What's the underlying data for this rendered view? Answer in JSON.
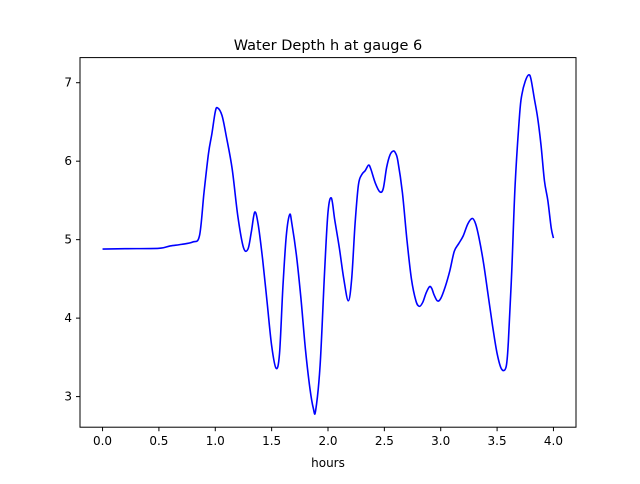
{
  "chart_data": {
    "type": "line",
    "title": "Water Depth h at gauge 6",
    "xlabel": "hours",
    "ylabel": "",
    "xlim": [
      -0.2,
      4.2
    ],
    "ylim": [
      2.61,
      7.32
    ],
    "x_ticks": [
      0.0,
      0.5,
      1.0,
      1.5,
      2.0,
      2.5,
      3.0,
      3.5,
      4.0
    ],
    "x_tick_labels": [
      "0.0",
      "0.5",
      "1.0",
      "1.5",
      "2.0",
      "2.5",
      "3.0",
      "3.5",
      "4.0"
    ],
    "y_ticks": [
      3,
      4,
      5,
      6,
      7
    ],
    "y_tick_labels": [
      "3",
      "4",
      "5",
      "6",
      "7"
    ],
    "grid": false,
    "series": [
      {
        "color": "#0000ff",
        "x": [
          0.0,
          0.2,
          0.5,
          0.6,
          0.7,
          0.8,
          0.86,
          0.9,
          0.94,
          0.97,
          1.0,
          1.02,
          1.06,
          1.1,
          1.15,
          1.2,
          1.25,
          1.29,
          1.32,
          1.35,
          1.38,
          1.42,
          1.46,
          1.5,
          1.54,
          1.57,
          1.6,
          1.63,
          1.66,
          1.68,
          1.72,
          1.76,
          1.8,
          1.84,
          1.87,
          1.89,
          1.93,
          1.97,
          2.0,
          2.03,
          2.06,
          2.1,
          2.14,
          2.18,
          2.21,
          2.24,
          2.27,
          2.3,
          2.33,
          2.36,
          2.38,
          2.42,
          2.46,
          2.49,
          2.52,
          2.55,
          2.58,
          2.6,
          2.62,
          2.66,
          2.7,
          2.74,
          2.78,
          2.81,
          2.84,
          2.87,
          2.9,
          2.92,
          2.94,
          2.97,
          3.0,
          3.04,
          3.08,
          3.12,
          3.16,
          3.2,
          3.24,
          3.28,
          3.31,
          3.34,
          3.38,
          3.42,
          3.46,
          3.5,
          3.54,
          3.58,
          3.6,
          3.63,
          3.66,
          3.7,
          3.72,
          3.75,
          3.78,
          3.8,
          3.83,
          3.86,
          3.89,
          3.92,
          3.95,
          3.98,
          4.0
        ],
        "y": [
          4.88,
          4.885,
          4.89,
          4.92,
          4.94,
          4.97,
          5.05,
          5.6,
          6.1,
          6.35,
          6.63,
          6.68,
          6.58,
          6.3,
          5.9,
          5.3,
          4.9,
          4.88,
          5.1,
          5.35,
          5.2,
          4.75,
          4.2,
          3.65,
          3.36,
          3.55,
          4.4,
          5.05,
          5.32,
          5.2,
          4.8,
          4.25,
          3.6,
          3.1,
          2.85,
          2.82,
          3.4,
          4.6,
          5.35,
          5.53,
          5.25,
          4.9,
          4.5,
          4.22,
          4.5,
          5.2,
          5.7,
          5.83,
          5.88,
          5.95,
          5.9,
          5.72,
          5.61,
          5.65,
          5.92,
          6.08,
          6.13,
          6.1,
          6.0,
          5.6,
          5.0,
          4.5,
          4.22,
          4.15,
          4.2,
          4.32,
          4.4,
          4.38,
          4.3,
          4.22,
          4.25,
          4.4,
          4.6,
          4.85,
          4.95,
          5.05,
          5.2,
          5.27,
          5.2,
          5.02,
          4.7,
          4.3,
          3.9,
          3.55,
          3.35,
          3.38,
          3.7,
          4.6,
          5.7,
          6.6,
          6.85,
          7.02,
          7.1,
          7.05,
          6.8,
          6.55,
          6.2,
          5.75,
          5.5,
          5.15,
          5.02
        ]
      }
    ]
  }
}
